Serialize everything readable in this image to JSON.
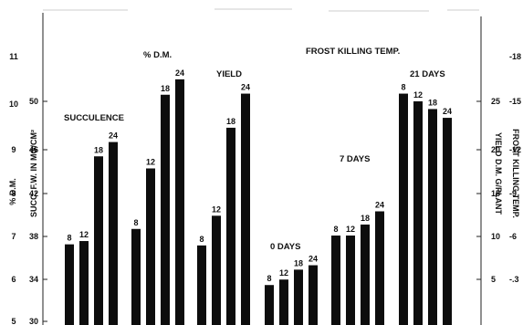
{
  "chart_data": {
    "type": "bar",
    "title": "FROST KILLING TEMP.",
    "axes": {
      "left_outer": {
        "label": "% D.M.",
        "ticks": [
          "5",
          "6",
          "7",
          "8",
          "9",
          "10",
          "11"
        ]
      },
      "left_inner": {
        "label": "SUCC. F.W. IN MG/CM²",
        "ticks": [
          "30",
          "34",
          "38",
          "42",
          "46",
          "50"
        ]
      },
      "right_inner": {
        "label": "YIELD D.M. G/PLANT",
        "ticks": [
          "5",
          "10",
          "15",
          "20",
          "25"
        ]
      },
      "right_outer": {
        "label": "FROST KILLING TEMP.",
        "ticks": [
          "-.3",
          "-6",
          "-9",
          "-12",
          "-15",
          "-18"
        ]
      }
    },
    "ylim": [
      30,
      52
    ],
    "groups": [
      {
        "name": "SUCCULENCE",
        "categories": [
          "8",
          "12",
          "18",
          "24"
        ],
        "values": [
          37.0,
          37.3,
          45.0,
          46.3
        ]
      },
      {
        "name": "% D.M.",
        "categories": [
          "8",
          "12",
          "18",
          "24"
        ],
        "values": [
          38.4,
          43.9,
          50.6,
          52.0
        ]
      },
      {
        "name": "YIELD",
        "categories": [
          "8",
          "12",
          "18",
          "24"
        ],
        "values": [
          36.9,
          39.6,
          47.6,
          50.7
        ]
      },
      {
        "name": "0 DAYS",
        "categories": [
          "8",
          "12",
          "18",
          "24"
        ],
        "values": [
          33.3,
          33.8,
          34.7,
          35.1
        ]
      },
      {
        "name": "7 DAYS",
        "categories": [
          "8",
          "12",
          "18",
          "24"
        ],
        "values": [
          37.8,
          37.8,
          38.8,
          40.0
        ]
      },
      {
        "name": "21 DAYS",
        "categories": [
          "8",
          "12",
          "18",
          "24"
        ],
        "values": [
          50.7,
          50.0,
          49.3,
          48.5
        ]
      }
    ],
    "colors": {
      "bars": "#0d0d0d",
      "background": "#ffffff",
      "text": "#111111"
    }
  }
}
